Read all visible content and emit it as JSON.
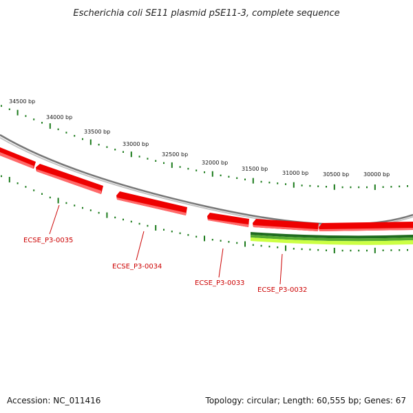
{
  "title": "Escherichia coli SE11 plasmid pSE11-3, complete sequence",
  "footer": {
    "accession": "Accession: NC_011416",
    "summary": "Topology: circular; Length: 60,555 bp; Genes: 67"
  },
  "outer_scale": [
    {
      "label": "34500 bp",
      "bp": 34500
    },
    {
      "label": "34000 bp",
      "bp": 34000
    },
    {
      "label": "33500 bp",
      "bp": 33500
    },
    {
      "label": "33000 bp",
      "bp": 33000
    },
    {
      "label": "32500 bp",
      "bp": 32500
    },
    {
      "label": "32000 bp",
      "bp": 32000
    },
    {
      "label": "31500 bp",
      "bp": 31500
    },
    {
      "label": "31000 bp",
      "bp": 31000
    },
    {
      "label": "30500 bp",
      "bp": 30500
    },
    {
      "label": "30000 bp",
      "bp": 30000
    }
  ],
  "genes": [
    {
      "label": "ECSE_P3-0035"
    },
    {
      "label": "ECSE_P3-0034"
    },
    {
      "label": "ECSE_P3-0033"
    },
    {
      "label": "ECSE_P3-0032"
    }
  ],
  "colors": {
    "gene": "#ee0000",
    "gene_highlight": "#ff6666",
    "backbone": "#888888",
    "tick": "#1a7a1a",
    "gc_dark": "#1f6b1f",
    "gc_mid": "#55aa33",
    "gc_light": "#ccff44",
    "label": "#cc0000"
  }
}
